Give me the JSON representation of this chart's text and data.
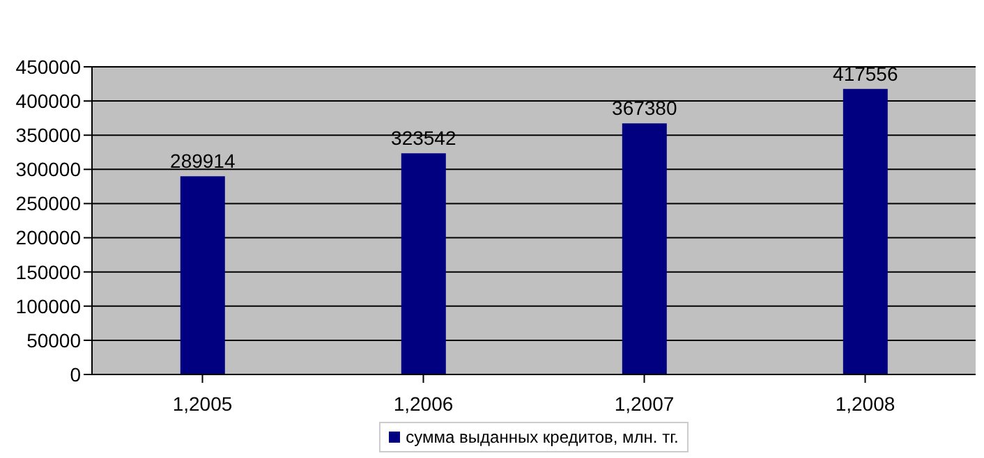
{
  "chart_data": {
    "type": "bar",
    "categories": [
      "1,2005",
      "1,2006",
      "1,2007",
      "1,2008"
    ],
    "series": [
      {
        "name": "сумма выданных кредитов, млн. тг.",
        "color": "#000080",
        "values": [
          289914,
          323542,
          367380,
          417556
        ]
      }
    ],
    "ylim": [
      0,
      450000
    ],
    "yticks": [
      0,
      50000,
      100000,
      150000,
      200000,
      250000,
      300000,
      350000,
      400000,
      450000
    ],
    "grid": "y",
    "legend": "bottom",
    "data_labels": true
  }
}
